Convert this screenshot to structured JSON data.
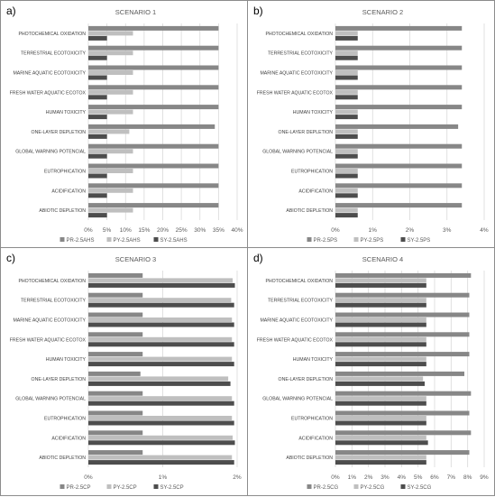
{
  "chart_data": [
    {
      "panel_label": "a)",
      "type": "bar",
      "orientation": "horizontal",
      "title": "SCENARIO 1",
      "categories": [
        "PHOTOCHEMICAL OXIDATION",
        "TERRESTRIAL ECOTOXICITY",
        "MARINE AQUATIC ECOTOXICITY",
        "FRESH WATER AQUATIC ECOTOX",
        "HUMAN TOXICITY",
        "ONE-LAYER DEPLETION",
        "GLOBAL WARNING POTENCIAL",
        "EUTROPHICATION",
        "ACIDIFICATION",
        "ABIOTIC DEPLETION"
      ],
      "series": [
        {
          "name": "PR-2.5AHS",
          "color": "#878787",
          "values": [
            35,
            35,
            35,
            35,
            35,
            34,
            35,
            35,
            35,
            35
          ]
        },
        {
          "name": "PY-2.5AHS",
          "color": "#bfbfbf",
          "values": [
            12,
            12,
            12,
            12,
            12,
            11,
            12,
            12,
            12,
            12
          ]
        },
        {
          "name": "SY-2.5AHS",
          "color": "#4d4d4d",
          "values": [
            5,
            5,
            5,
            5,
            5,
            5,
            5,
            5,
            5,
            5
          ]
        }
      ],
      "xticks": [
        "0%",
        "5%",
        "10%",
        "15%",
        "20%",
        "25%",
        "30%",
        "35%",
        "40%"
      ],
      "xlim": [
        0,
        40
      ],
      "grid": true,
      "legend": "bottom"
    },
    {
      "panel_label": "b)",
      "type": "bar",
      "orientation": "horizontal",
      "title": "SCENARIO 2",
      "categories": [
        "PHOTOCHEMICAL OXIDATION",
        "TERRESTRIAL ECOTOXICITY",
        "MARINE AQUATIC ECOTOXICITY",
        "FRESH WATER AQUATIC ECOTOX",
        "HUMAN TOXICITY",
        "ONE-LAYER DEPLETION",
        "GLOBAL WARNING POTENCIAL",
        "EUTROPHICATION",
        "ACIDIFICATION",
        "ABIOTIC DEPLETION"
      ],
      "series": [
        {
          "name": "PR-2.5PS",
          "color": "#878787",
          "values": [
            3.4,
            3.4,
            3.4,
            3.4,
            3.4,
            3.3,
            3.4,
            3.4,
            3.4,
            3.4
          ]
        },
        {
          "name": "PY-2.5PS",
          "color": "#bfbfbf",
          "values": [
            0.6,
            0.6,
            0.6,
            0.6,
            0.6,
            0.6,
            0.6,
            0.6,
            0.6,
            0.6
          ]
        },
        {
          "name": "SY-2.5PS",
          "color": "#4d4d4d",
          "values": [
            0.6,
            0.6,
            0.6,
            0.6,
            0.6,
            0.6,
            0.6,
            0.6,
            0.6,
            0.6
          ]
        }
      ],
      "xticks": [
        "0%",
        "1%",
        "2%",
        "3%",
        "4%"
      ],
      "xlim": [
        0,
        4
      ],
      "grid": true,
      "legend": "bottom"
    },
    {
      "panel_label": "c)",
      "type": "bar",
      "orientation": "horizontal",
      "title": "SCENARIO 3",
      "categories": [
        "PHOTOCHEMICAL OXIDATION",
        "TERRESTRIAL ECOTOXICITY",
        "MARINE AQUATIC ECOTOXICITY",
        "FRESH WATER AQUATIC ECOTOX",
        "HUMAN TOXICITY",
        "ONE-LAYER DEPLETION",
        "GLOBAL WARNING POTENCIAL",
        "EUTROPHICATION",
        "ACIDIFICATION",
        "ABIOTIC DEPLETION"
      ],
      "series": [
        {
          "name": "PR-2.5CP",
          "color": "#878787",
          "values": [
            0.73,
            0.73,
            0.73,
            0.73,
            0.73,
            0.7,
            0.73,
            0.73,
            0.73,
            0.73
          ]
        },
        {
          "name": "PY-2.5CP",
          "color": "#bfbfbf",
          "values": [
            1.94,
            1.92,
            1.93,
            1.93,
            1.93,
            1.88,
            1.93,
            1.93,
            1.94,
            1.93
          ]
        },
        {
          "name": "SY-2.5CP",
          "color": "#4d4d4d",
          "values": [
            1.97,
            1.96,
            1.96,
            1.96,
            1.96,
            1.91,
            1.96,
            1.96,
            1.97,
            1.96
          ]
        }
      ],
      "xticks": [
        "0%",
        "1%",
        "2%"
      ],
      "xlim": [
        0,
        2
      ],
      "grid": true,
      "legend": "bottom"
    },
    {
      "panel_label": "d)",
      "type": "bar",
      "orientation": "horizontal",
      "title": "SCENARIO 4",
      "categories": [
        "PHOTOCHEMICAL OXIDATION",
        "TERRESTRIAL ECOTOXICITY",
        "MARINE AQUATIC ECOTOXICITY",
        "FRESH WATER AQUATIC ECOTOX",
        "HUMAN TOXICITY",
        "ONE-LAYER DEPLETION",
        "GLOBAL WARNING POTENCIAL",
        "EUTROPHICATION",
        "ACIDIFICATION",
        "ABIOTIC DEPLETION"
      ],
      "series": [
        {
          "name": "PR-2.5CG",
          "color": "#878787",
          "values": [
            8.2,
            8.1,
            8.1,
            8.1,
            8.1,
            7.8,
            8.2,
            8.1,
            8.2,
            8.1
          ]
        },
        {
          "name": "PY-2.5CG",
          "color": "#bfbfbf",
          "values": [
            5.5,
            5.5,
            5.5,
            5.5,
            5.5,
            5.3,
            5.5,
            5.5,
            5.5,
            5.5
          ]
        },
        {
          "name": "SY-2.5CG",
          "color": "#4d4d4d",
          "values": [
            5.5,
            5.5,
            5.5,
            5.5,
            5.5,
            5.4,
            5.5,
            5.5,
            5.6,
            5.5
          ]
        }
      ],
      "xticks": [
        "0%",
        "1%",
        "2%",
        "3%",
        "4%",
        "5%",
        "6%",
        "7%",
        "8%",
        "9%"
      ],
      "xlim": [
        0,
        9
      ],
      "grid": true,
      "legend": "bottom"
    }
  ]
}
